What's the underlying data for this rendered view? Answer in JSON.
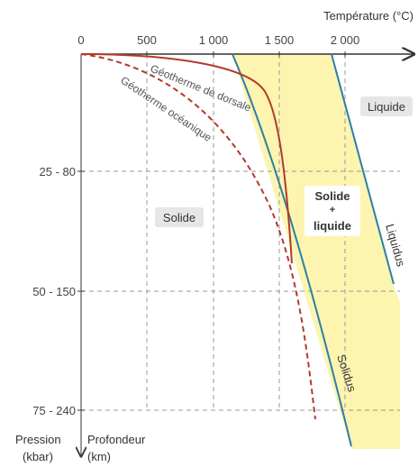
{
  "axis_x": {
    "title": "Température (°C)",
    "ticks": [
      "0",
      "500",
      "1 000",
      "1 500",
      "2 000"
    ]
  },
  "axis_y": {
    "pressure_title": "Pression",
    "pressure_unit": "(kbar)",
    "depth_title": "Profondeur",
    "depth_unit": "(km)",
    "ticks": [
      "25 - 80",
      "50 - 150",
      "75 - 240"
    ]
  },
  "regions": {
    "liquid": "Liquide",
    "solid": "Solide",
    "mix_line1": "Solide",
    "mix_line2": "+",
    "mix_line3": "liquide"
  },
  "curves": {
    "geotherm_ridge": "Géotherme de dorsale",
    "geotherm_ocean": "Géotherme océanique",
    "liquidus": "Liquidus",
    "solidus": "Solidus"
  },
  "colors": {
    "mix_zone": "#fdf4b0",
    "geotherm": "#b23a2a",
    "solidus_liquidus": "#2a7fa8",
    "label_box": "#e6e6e6"
  }
}
